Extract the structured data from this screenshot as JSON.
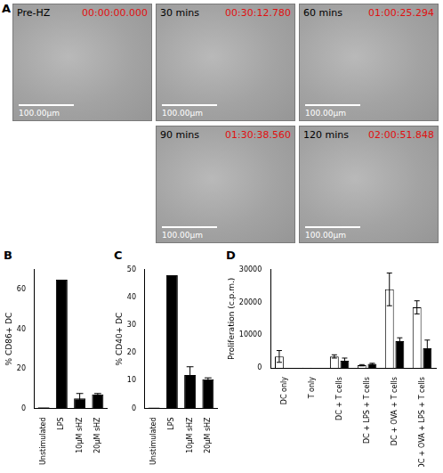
{
  "panel_a": {
    "letter": "A",
    "frames": [
      {
        "label": "Pre-HZ",
        "time": "00:00:00.000",
        "scale_bar": "100.00µm"
      },
      {
        "label": "30 mins",
        "time": "00:30:12.780",
        "scale_bar": "100.00µm"
      },
      {
        "label": "60 mins",
        "time": "01:00:25.294",
        "scale_bar": "100.00µm"
      },
      {
        "label": "90 mins",
        "time": "01:30:38.560",
        "scale_bar": "100.00µm"
      },
      {
        "label": "120 mins",
        "time": "02:00:51.848",
        "scale_bar": "100.00µm"
      }
    ]
  },
  "chart_data": [
    {
      "panel": "B",
      "type": "bar",
      "y_label": "% CD86+ DC",
      "categories": [
        "Unstimulated",
        "LPS",
        "10µM sHZ",
        "20µM sHZ"
      ],
      "values": [
        0.5,
        65,
        5,
        7
      ],
      "errors": [
        0,
        0,
        2.5,
        0.5
      ],
      "color": "#000000",
      "ylim": [
        0,
        70
      ],
      "yticks": [
        0,
        20,
        40,
        60
      ],
      "grid": false
    },
    {
      "panel": "C",
      "type": "bar",
      "y_label": "% CD40+ DC",
      "categories": [
        "Unstimulated",
        "LPS",
        "10µM sHZ",
        "20µM sHZ"
      ],
      "values": [
        0.3,
        48,
        12,
        10.5
      ],
      "errors": [
        0,
        0,
        3,
        0.5
      ],
      "color": "#000000",
      "ylim": [
        0,
        50
      ],
      "yticks": [
        0,
        10,
        20,
        30,
        40,
        50
      ],
      "grid": false
    },
    {
      "panel": "D",
      "type": "bar",
      "y_label": "Proliferation (c.p.m.)",
      "categories": [
        "DC only",
        "T only",
        "DC + T cells",
        "DC + LPS + T cells",
        "DC + OVA + T cells",
        "DC + OVA + LPS + T cells"
      ],
      "series": [
        {
          "color": "#ffffff",
          "values": [
            3500,
            100,
            3500,
            800,
            24000,
            18500
          ],
          "errors": [
            1800,
            0,
            500,
            200,
            5000,
            2000
          ]
        },
        {
          "color": "#000000",
          "values": [
            null,
            null,
            2200,
            1200,
            8200,
            6000
          ],
          "errors": [
            null,
            null,
            800,
            200,
            1000,
            2500
          ]
        }
      ],
      "ylim": [
        0,
        30000
      ],
      "yticks": [
        0,
        10000,
        20000,
        30000
      ],
      "grid": false
    }
  ]
}
